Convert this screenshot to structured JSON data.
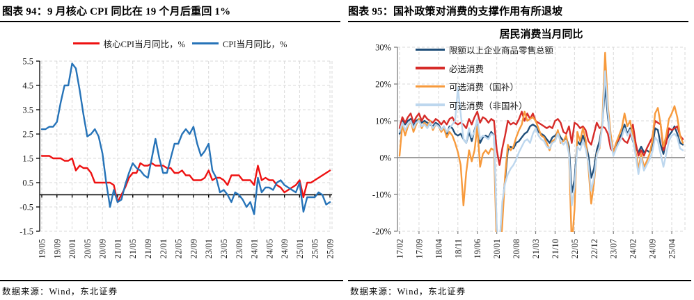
{
  "left_panel": {
    "title": "图表 94：9 月核心 CPI 同比在 19 个月后重回 1%",
    "source": "数据来源：Wind，东北证券"
  },
  "right_panel": {
    "title": "图表 95：国补政策对消费的支撑作用有所退坡",
    "source": "数据来源：Wind，东北证券"
  },
  "chart_data": [
    {
      "id": "cpi-chart",
      "type": "line",
      "title": "",
      "xlabel": "",
      "ylabel": "",
      "ylim": [
        -1.5,
        5.5
      ],
      "ytick_values": [
        5.5,
        4.5,
        3.5,
        2.5,
        1.5,
        0.5,
        -0.5,
        -1.5
      ],
      "ytick_labels": [
        "5.5",
        "4.5",
        "3.5",
        "2.5",
        "1.5",
        "0.5",
        "-0.5",
        "-1.5"
      ],
      "x_tick_every": 4,
      "grid": true,
      "grid_color": "#d9d9d9",
      "axis_color": "#000000",
      "zero_line_color": "#000000",
      "legend_position": "top",
      "x": [
        "19/05",
        "19/06",
        "19/07",
        "19/08",
        "19/09",
        "19/10",
        "19/11",
        "19/12",
        "20/01",
        "20/02",
        "20/03",
        "20/04",
        "20/05",
        "20/06",
        "20/07",
        "20/08",
        "20/09",
        "20/10",
        "20/11",
        "20/12",
        "21/01",
        "21/02",
        "21/03",
        "21/04",
        "21/05",
        "21/06",
        "21/07",
        "21/08",
        "21/09",
        "21/10",
        "21/11",
        "21/12",
        "22/01",
        "22/02",
        "22/03",
        "22/04",
        "22/05",
        "22/06",
        "22/07",
        "22/08",
        "22/09",
        "22/10",
        "22/11",
        "22/12",
        "23/01",
        "23/02",
        "23/03",
        "23/04",
        "23/05",
        "23/06",
        "23/07",
        "23/08",
        "23/09",
        "23/10",
        "23/11",
        "23/12",
        "24/01",
        "24/02",
        "24/03",
        "24/04",
        "24/05",
        "24/06",
        "24/07",
        "24/08",
        "24/09",
        "24/10",
        "24/11",
        "24/12",
        "25/01",
        "25/02",
        "25/03",
        "25/04",
        "25/05",
        "25/06",
        "25/07",
        "25/08",
        "25/09"
      ],
      "series": [
        {
          "name": "核心CPI当月同比，%",
          "color": "#ee1111",
          "values": [
            1.6,
            1.6,
            1.6,
            1.5,
            1.5,
            1.5,
            1.4,
            1.4,
            1.5,
            1.0,
            1.2,
            1.1,
            1.1,
            0.9,
            0.5,
            0.5,
            0.5,
            0.5,
            0.5,
            0.4,
            -0.3,
            0.0,
            0.3,
            0.7,
            0.9,
            0.9,
            1.3,
            1.2,
            1.2,
            1.3,
            1.2,
            1.2,
            1.2,
            1.1,
            1.1,
            0.9,
            0.9,
            1.0,
            0.8,
            0.8,
            0.6,
            0.6,
            0.6,
            0.7,
            1.0,
            0.6,
            0.7,
            0.7,
            0.6,
            0.4,
            0.8,
            0.8,
            0.8,
            0.6,
            0.6,
            0.6,
            0.4,
            1.2,
            0.6,
            0.7,
            0.6,
            0.6,
            0.4,
            0.3,
            0.1,
            0.2,
            0.3,
            0.4,
            0.6,
            -0.1,
            0.5,
            0.5,
            0.6,
            0.7,
            0.8,
            0.9,
            1.0
          ]
        },
        {
          "name": "CPI当月同比，%",
          "color": "#2673b8",
          "values": [
            2.7,
            2.7,
            2.8,
            2.8,
            3.0,
            3.8,
            4.5,
            4.5,
            5.4,
            5.2,
            4.3,
            3.3,
            2.4,
            2.5,
            2.7,
            2.4,
            1.7,
            0.5,
            -0.5,
            0.2,
            -0.3,
            -0.2,
            0.4,
            0.9,
            1.3,
            1.1,
            1.0,
            0.8,
            0.7,
            1.5,
            2.3,
            1.5,
            0.9,
            0.9,
            1.5,
            2.1,
            2.1,
            2.5,
            2.7,
            2.5,
            2.8,
            2.1,
            1.6,
            1.8,
            2.1,
            1.0,
            0.7,
            0.1,
            0.2,
            0.0,
            -0.3,
            0.1,
            0.0,
            -0.2,
            -0.5,
            -0.3,
            -0.8,
            0.7,
            0.1,
            0.3,
            0.3,
            0.2,
            0.5,
            0.6,
            0.4,
            0.3,
            0.2,
            0.1,
            0.5,
            -0.7,
            -0.1,
            -0.1,
            -0.1,
            0.1,
            0.0,
            -0.4,
            -0.3
          ]
        }
      ]
    },
    {
      "id": "consumption-chart",
      "type": "line",
      "title": "居民消费当月同比",
      "xlabel": "",
      "ylabel": "",
      "ylim": [
        -20,
        30
      ],
      "ytick_values": [
        30,
        20,
        10,
        0,
        -10,
        -20
      ],
      "ytick_labels": [
        "30%",
        "20%",
        "10%",
        "0%",
        "-10%",
        "-20%"
      ],
      "x_tick_every": 7,
      "grid": true,
      "grid_color": "#d9d9d9",
      "axis_color": "#808080",
      "zero_line_color": "#7f7f7f",
      "legend_position": "upper-left",
      "x": [
        "17/02",
        "17/03",
        "17/04",
        "17/05",
        "17/06",
        "17/07",
        "17/08",
        "17/09",
        "17/10",
        "17/11",
        "17/12",
        "18/01",
        "18/02",
        "18/03",
        "18/04",
        "18/05",
        "18/06",
        "18/07",
        "18/08",
        "18/09",
        "18/10",
        "18/11",
        "18/12",
        "19/01",
        "19/02",
        "19/03",
        "19/04",
        "19/05",
        "19/06",
        "19/07",
        "19/08",
        "19/09",
        "19/10",
        "19/11",
        "19/12",
        "20/01",
        "20/02",
        "20/03",
        "20/04",
        "20/05",
        "20/06",
        "20/07",
        "20/08",
        "20/09",
        "20/10",
        "20/11",
        "20/12",
        "21/01",
        "21/02",
        "21/03",
        "21/04",
        "21/05",
        "21/06",
        "21/07",
        "21/08",
        "21/09",
        "21/10",
        "21/11",
        "21/12",
        "22/01",
        "22/02",
        "22/03",
        "22/04",
        "22/05",
        "22/06",
        "22/07",
        "22/08",
        "22/09",
        "22/10",
        "22/11",
        "22/12",
        "23/01",
        "23/02",
        "23/03",
        "23/04",
        "23/05",
        "23/06",
        "23/07",
        "23/08",
        "23/09",
        "23/10",
        "23/11",
        "23/12",
        "24/01",
        "24/02",
        "24/03",
        "24/04",
        "24/05",
        "24/06",
        "24/07",
        "24/08",
        "24/09",
        "24/10",
        "24/11",
        "24/12",
        "25/01",
        "25/02",
        "25/03",
        "25/04",
        "25/05",
        "25/06",
        "25/07",
        "25/08"
      ],
      "series": [
        {
          "name": "限额以上企业商品零售总额",
          "color": "#1f4e79",
          "values": [
            6.5,
            10.5,
            9,
            10,
            10.5,
            8.5,
            10,
            10.5,
            9.5,
            10,
            9.5,
            9,
            8.5,
            9.5,
            9,
            7.5,
            8.5,
            6.5,
            8.5,
            8,
            6.5,
            6,
            6.5,
            5,
            4,
            7,
            4.5,
            7.5,
            10,
            4,
            5.5,
            6,
            5.5,
            7,
            6,
            -20.5,
            -23.5,
            -13.5,
            -6,
            2,
            3,
            2.5,
            4,
            4.5,
            5.5,
            6.5,
            7,
            8.5,
            9,
            8.5,
            7,
            6.5,
            6,
            5,
            4,
            5.5,
            6,
            7,
            5.5,
            4.5,
            5.5,
            3,
            -9.5,
            -6,
            4.5,
            3.5,
            6,
            4,
            0.5,
            -5.5,
            -3,
            2,
            4.5,
            9,
            19.5,
            11,
            5,
            1.5,
            3.5,
            5,
            6.5,
            9,
            6.5,
            8,
            4.5,
            2.5,
            1.5,
            3,
            1.5,
            2,
            1.5,
            2.5,
            8,
            7.5,
            3.5,
            1,
            4.5,
            6,
            7,
            8.5,
            6.5,
            4,
            3.5
          ]
        },
        {
          "name": "必选消费",
          "color": "#d62b28",
          "values": [
            8,
            11,
            9.5,
            11,
            12,
            9.5,
            11,
            12,
            10,
            11.5,
            10.5,
            10,
            9.5,
            10.5,
            10,
            9,
            10,
            9,
            10.5,
            11,
            9.5,
            9,
            9.5,
            9,
            8,
            10.5,
            9,
            11,
            12.5,
            9.5,
            11,
            10.5,
            9.5,
            10.5,
            10,
            2,
            -2,
            2.5,
            6,
            10,
            9,
            9.5,
            9,
            10.5,
            12.5,
            10,
            12,
            10.5,
            12,
            10,
            9.5,
            9,
            8.5,
            8,
            8.5,
            8,
            10,
            10.5,
            9.5,
            7,
            6.5,
            8.5,
            4,
            9.5,
            9,
            8,
            8.5,
            7.5,
            4.5,
            3.5,
            6.5,
            9.5,
            8,
            8.5,
            8,
            6.5,
            2.5,
            1.5,
            4,
            5,
            5.5,
            4.5,
            4,
            6,
            9,
            4,
            0.5,
            2,
            0.5,
            2.5,
            4,
            5.5,
            10,
            9.5,
            9,
            2,
            4,
            8,
            7.5,
            8,
            8.5,
            6,
            5
          ]
        },
        {
          "name": "可选消费（国补）",
          "color": "#f79a3c",
          "values": [
            0.5,
            9,
            6,
            8.5,
            10,
            7,
            9,
            10.5,
            8,
            9.5,
            8.5,
            10,
            7.5,
            9,
            8.5,
            7,
            8,
            5.5,
            7,
            6,
            4,
            1.5,
            -2,
            -13,
            -4,
            2,
            -1,
            2,
            8.5,
            -2.5,
            1,
            2,
            1,
            2.5,
            2,
            -25,
            -30,
            -18,
            -5,
            3.5,
            2,
            3,
            5.5,
            7.5,
            9,
            12.5,
            10,
            10.5,
            11,
            10,
            8,
            6,
            5.5,
            4,
            2,
            4.5,
            5,
            7.5,
            4,
            4.5,
            6,
            1.5,
            -24,
            -14,
            7,
            4.5,
            8,
            5,
            -2.5,
            -12.5,
            -7,
            1,
            2.5,
            10,
            28.5,
            14,
            6.5,
            1,
            4,
            6,
            8,
            12,
            8.5,
            10,
            6,
            1.5,
            -3,
            1,
            -2.5,
            -1,
            1,
            4.5,
            12,
            13.5,
            9,
            3,
            6,
            10.5,
            12,
            14,
            11,
            6,
            4
          ]
        },
        {
          "name": "可选消费（非国补）",
          "color": "#bdd7ee",
          "values": [
            7,
            9.5,
            7.5,
            9,
            10,
            8,
            9.5,
            10,
            8.5,
            9,
            8,
            9.5,
            8,
            9,
            8.5,
            7.5,
            8.5,
            7,
            8,
            9,
            10,
            19,
            12,
            5,
            4,
            8,
            5.5,
            7,
            10.5,
            5,
            6,
            5.5,
            5,
            6.5,
            6,
            -19,
            -24,
            -12,
            -7,
            -4.5,
            -3,
            -2,
            -0.5,
            1.5,
            3,
            4.5,
            5,
            4,
            6.5,
            8,
            6,
            5,
            4.5,
            3,
            2.5,
            4,
            4.5,
            6.5,
            4.5,
            3.5,
            4.5,
            1,
            -13,
            -8,
            3,
            2,
            4.5,
            2.5,
            -1.5,
            -9,
            -5.5,
            0.5,
            3,
            8.5,
            23.5,
            12.5,
            4.5,
            0.5,
            2.5,
            4,
            5.5,
            8,
            6,
            7.5,
            5,
            0.5,
            -4.5,
            0,
            -3.5,
            -2,
            -0.5,
            1.5,
            5.5,
            4.5,
            1,
            -2.5,
            1,
            4.5,
            6,
            6.5,
            5.5,
            2.5,
            2
          ]
        }
      ]
    }
  ]
}
